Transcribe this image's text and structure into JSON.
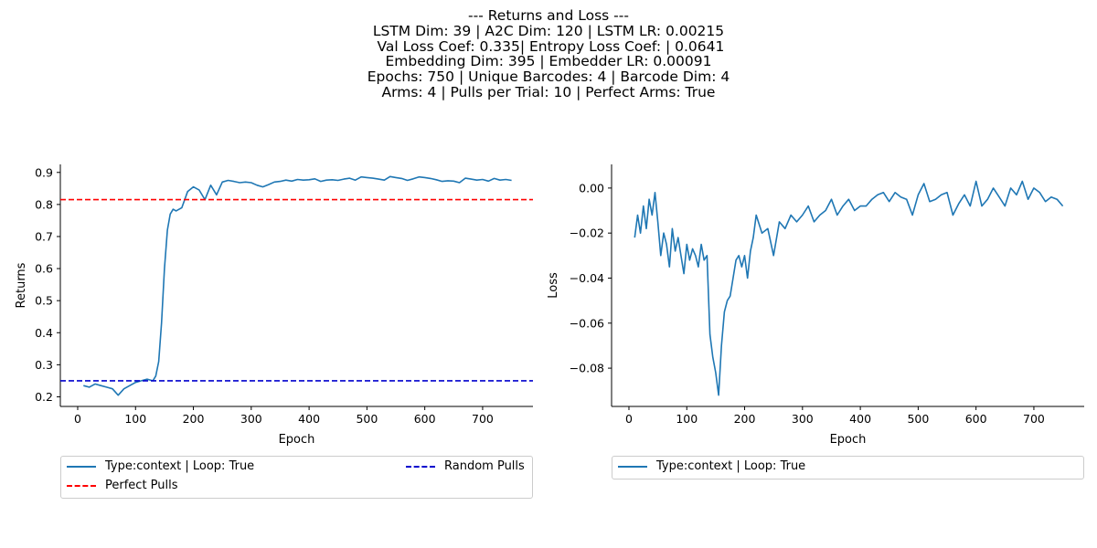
{
  "suptitle": {
    "lines": [
      "--- Returns and Loss ---",
      "LSTM Dim: 39 | A2C Dim: 120 | LSTM LR: 0.00215",
      " Val Loss Coef: 0.335| Entropy Loss Coef: | 0.0641",
      "Embedding Dim: 395 | Embedder LR: 0.00091",
      "Epochs: 750 | Unique Barcodes: 4 | Barcode Dim: 4",
      "Arms: 4 | Pulls per Trial: 10 | Perfect Arms: True"
    ]
  },
  "colors": {
    "series": "#1f77b4",
    "perfect": "#ff0000",
    "random": "#0000cd",
    "axis": "#000000"
  },
  "chart_data": [
    {
      "type": "line",
      "xlabel": "Epoch",
      "ylabel": "Returns",
      "xlim": [
        -30,
        787
      ],
      "ylim": [
        0.17,
        0.925
      ],
      "xticks": [
        "0",
        "100",
        "200",
        "300",
        "400",
        "500",
        "600",
        "700"
      ],
      "yticks": [
        "0.2",
        "0.3",
        "0.4",
        "0.5",
        "0.6",
        "0.7",
        "0.8",
        "0.9"
      ],
      "grid": false,
      "legend_placement": "below",
      "series": [
        {
          "name": "Type:context | Loop: True",
          "style": "solid",
          "x": [
            10,
            20,
            30,
            40,
            50,
            60,
            70,
            80,
            90,
            100,
            110,
            120,
            130,
            135,
            140,
            145,
            150,
            155,
            160,
            165,
            170,
            180,
            190,
            200,
            210,
            220,
            230,
            240,
            250,
            260,
            270,
            280,
            290,
            300,
            310,
            320,
            330,
            340,
            350,
            360,
            370,
            380,
            390,
            400,
            410,
            420,
            430,
            440,
            450,
            460,
            470,
            480,
            490,
            500,
            510,
            520,
            530,
            540,
            550,
            560,
            570,
            580,
            590,
            600,
            610,
            620,
            630,
            640,
            650,
            660,
            670,
            680,
            690,
            700,
            710,
            720,
            730,
            740,
            750
          ],
          "y": [
            0.235,
            0.23,
            0.24,
            0.235,
            0.23,
            0.225,
            0.205,
            0.225,
            0.235,
            0.245,
            0.25,
            0.255,
            0.25,
            0.265,
            0.31,
            0.43,
            0.6,
            0.72,
            0.77,
            0.785,
            0.78,
            0.79,
            0.84,
            0.855,
            0.845,
            0.815,
            0.86,
            0.83,
            0.87,
            0.875,
            0.872,
            0.868,
            0.87,
            0.868,
            0.86,
            0.855,
            0.862,
            0.87,
            0.872,
            0.876,
            0.873,
            0.878,
            0.876,
            0.877,
            0.88,
            0.872,
            0.876,
            0.877,
            0.875,
            0.879,
            0.882,
            0.876,
            0.886,
            0.884,
            0.882,
            0.879,
            0.876,
            0.887,
            0.884,
            0.881,
            0.875,
            0.88,
            0.886,
            0.884,
            0.881,
            0.877,
            0.872,
            0.874,
            0.873,
            0.868,
            0.882,
            0.879,
            0.876,
            0.878,
            0.873,
            0.881,
            0.876,
            0.878,
            0.875
          ]
        },
        {
          "name": "Perfect Pulls",
          "style": "dashed",
          "hline": 0.815
        },
        {
          "name": "Random Pulls",
          "style": "dashed",
          "hline": 0.25
        }
      ]
    },
    {
      "type": "line",
      "xlabel": "Epoch",
      "ylabel": "Loss",
      "xlim": [
        -30,
        787
      ],
      "ylim": [
        -0.097,
        0.0105
      ],
      "xticks": [
        "0",
        "100",
        "200",
        "300",
        "400",
        "500",
        "600",
        "700"
      ],
      "yticks": [
        "0.00",
        "−0.02",
        "−0.04",
        "−0.06",
        "−0.08"
      ],
      "grid": false,
      "legend_placement": "below",
      "series": [
        {
          "name": "Type:context | Loop: True",
          "style": "solid",
          "x": [
            10,
            15,
            20,
            25,
            30,
            35,
            40,
            45,
            50,
            55,
            60,
            65,
            70,
            75,
            80,
            85,
            90,
            95,
            100,
            105,
            110,
            115,
            120,
            125,
            130,
            135,
            140,
            145,
            150,
            155,
            160,
            165,
            170,
            175,
            180,
            185,
            190,
            195,
            200,
            205,
            210,
            215,
            220,
            230,
            240,
            250,
            260,
            270,
            280,
            290,
            300,
            310,
            320,
            330,
            340,
            350,
            360,
            370,
            380,
            390,
            400,
            410,
            420,
            430,
            440,
            450,
            460,
            470,
            480,
            490,
            500,
            510,
            520,
            530,
            540,
            550,
            560,
            570,
            580,
            590,
            600,
            610,
            620,
            630,
            640,
            650,
            660,
            670,
            680,
            690,
            700,
            710,
            720,
            730,
            740,
            750
          ],
          "y": [
            -0.022,
            -0.012,
            -0.02,
            -0.008,
            -0.018,
            -0.005,
            -0.012,
            -0.002,
            -0.015,
            -0.03,
            -0.02,
            -0.025,
            -0.035,
            -0.018,
            -0.028,
            -0.022,
            -0.03,
            -0.038,
            -0.025,
            -0.032,
            -0.027,
            -0.03,
            -0.035,
            -0.025,
            -0.032,
            -0.03,
            -0.065,
            -0.075,
            -0.082,
            -0.092,
            -0.07,
            -0.055,
            -0.05,
            -0.048,
            -0.04,
            -0.032,
            -0.03,
            -0.035,
            -0.03,
            -0.04,
            -0.028,
            -0.022,
            -0.012,
            -0.02,
            -0.018,
            -0.03,
            -0.015,
            -0.018,
            -0.012,
            -0.015,
            -0.012,
            -0.008,
            -0.015,
            -0.012,
            -0.01,
            -0.005,
            -0.012,
            -0.008,
            -0.005,
            -0.01,
            -0.008,
            -0.008,
            -0.005,
            -0.003,
            -0.002,
            -0.006,
            -0.002,
            -0.004,
            -0.005,
            -0.012,
            -0.003,
            0.002,
            -0.006,
            -0.005,
            -0.003,
            -0.002,
            -0.012,
            -0.007,
            -0.003,
            -0.008,
            0.003,
            -0.008,
            -0.005,
            0.0,
            -0.004,
            -0.008,
            0.0,
            -0.003,
            0.003,
            -0.005,
            0.0,
            -0.002,
            -0.006,
            -0.004,
            -0.005,
            -0.008
          ]
        }
      ]
    }
  ]
}
